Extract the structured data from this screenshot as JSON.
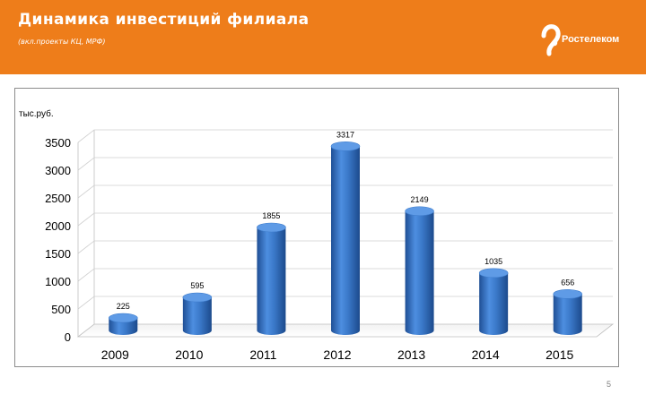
{
  "header": {
    "title": "Динамика инвестиций филиала",
    "subtitle": "(вкл.проекты КЦ, МРФ)",
    "logo_text": "Ростелеком",
    "brand_color": "#ee7d1a"
  },
  "page_number": "5",
  "chart_data": {
    "type": "bar",
    "style": "3d-cylinder",
    "ylabel": "тыс.руб.",
    "categories": [
      "2009",
      "2010",
      "2011",
      "2012",
      "2013",
      "2014",
      "2015"
    ],
    "values": [
      225,
      595,
      1855,
      3317,
      2149,
      1035,
      656
    ],
    "value_labels": [
      "225",
      "595",
      "1855",
      "3317",
      "2149",
      "1035",
      "656"
    ],
    "ylim": [
      0,
      3500
    ],
    "yticks": [
      "0",
      "500",
      "1000",
      "1500",
      "2000",
      "2500",
      "3000",
      "3500"
    ],
    "grid": true,
    "legend": "none",
    "bar_color": "#3a78c8"
  }
}
